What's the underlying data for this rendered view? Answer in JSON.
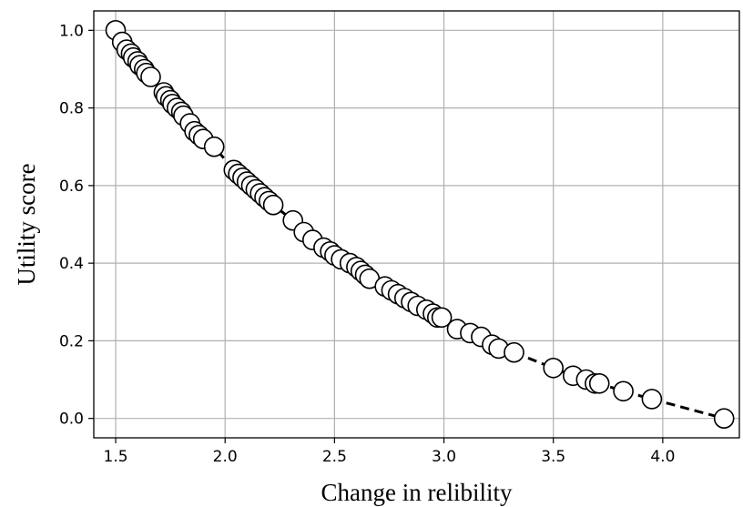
{
  "chart_data": {
    "type": "scatter",
    "title": "",
    "xlabel": "Change in relibility",
    "ylabel": "Utility score",
    "xlim": [
      1.4,
      4.35
    ],
    "ylim": [
      -0.05,
      1.05
    ],
    "xticks": [
      1.5,
      2.0,
      2.5,
      3.0,
      3.5,
      4.0
    ],
    "xtick_labels": [
      "1.5",
      "2.0",
      "2.5",
      "3.0",
      "3.5",
      "4.0"
    ],
    "yticks": [
      0.0,
      0.2,
      0.4,
      0.6,
      0.8,
      1.0
    ],
    "ytick_labels": [
      "0.0",
      "0.2",
      "0.4",
      "0.6",
      "0.8",
      "1.0"
    ],
    "grid": true,
    "legend": "none",
    "colors": {
      "marker_fill": "#ffffff",
      "marker_edge": "#000000",
      "line": "#000000",
      "grid": "#b0b0b0"
    },
    "series": [
      {
        "line_style": "dashed",
        "marker": "circle",
        "x": [
          1.5,
          1.53,
          1.55,
          1.57,
          1.58,
          1.6,
          1.61,
          1.63,
          1.64,
          1.66,
          1.72,
          1.73,
          1.75,
          1.76,
          1.78,
          1.8,
          1.81,
          1.84,
          1.86,
          1.88,
          1.9,
          1.95,
          2.04,
          2.06,
          2.08,
          2.1,
          2.12,
          2.14,
          2.16,
          2.18,
          2.2,
          2.22,
          2.31,
          2.36,
          2.4,
          2.45,
          2.48,
          2.5,
          2.53,
          2.57,
          2.6,
          2.62,
          2.64,
          2.66,
          2.73,
          2.76,
          2.79,
          2.82,
          2.85,
          2.88,
          2.92,
          2.95,
          2.97,
          2.99,
          3.06,
          3.12,
          3.17,
          3.22,
          3.25,
          3.32,
          3.5,
          3.59,
          3.65,
          3.69,
          3.71,
          3.82,
          3.95,
          4.28
        ],
        "y": [
          1.0,
          0.97,
          0.95,
          0.94,
          0.93,
          0.92,
          0.91,
          0.9,
          0.89,
          0.88,
          0.84,
          0.83,
          0.82,
          0.81,
          0.8,
          0.79,
          0.78,
          0.76,
          0.74,
          0.73,
          0.72,
          0.7,
          0.64,
          0.63,
          0.62,
          0.61,
          0.6,
          0.59,
          0.58,
          0.57,
          0.56,
          0.55,
          0.51,
          0.48,
          0.46,
          0.44,
          0.43,
          0.42,
          0.41,
          0.4,
          0.39,
          0.38,
          0.37,
          0.36,
          0.34,
          0.33,
          0.32,
          0.31,
          0.3,
          0.29,
          0.28,
          0.27,
          0.26,
          0.26,
          0.23,
          0.22,
          0.21,
          0.19,
          0.18,
          0.17,
          0.13,
          0.11,
          0.1,
          0.09,
          0.09,
          0.07,
          0.05,
          0.0
        ]
      }
    ]
  }
}
